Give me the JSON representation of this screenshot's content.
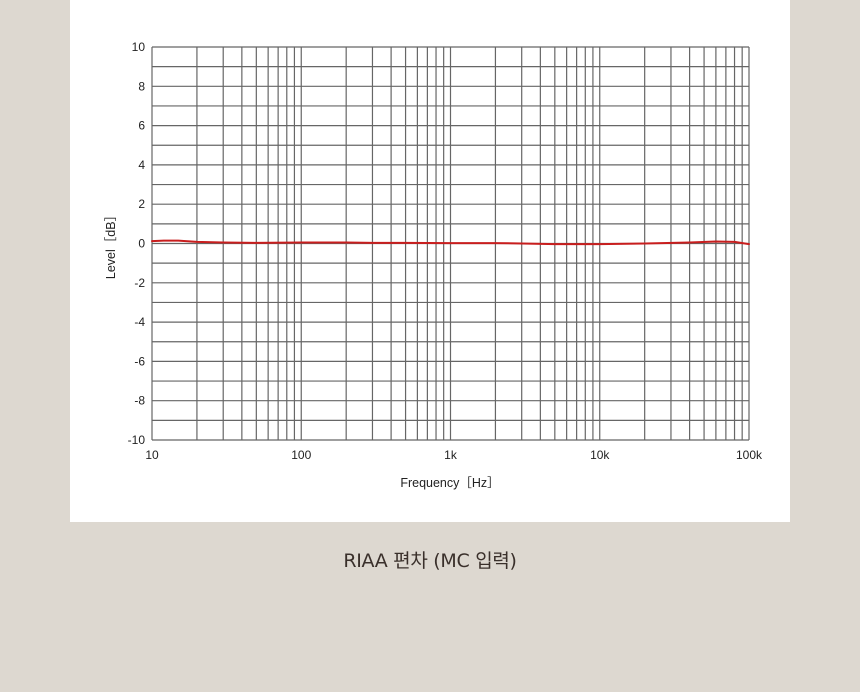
{
  "caption": "RIAA 편차 (MC 입력)",
  "chart_data": {
    "type": "line",
    "xlabel": "Frequency［Hz］",
    "ylabel": "Level［dB］",
    "xscale": "log",
    "xlim": [
      10,
      100000
    ],
    "ylim": [
      -10,
      10
    ],
    "x_ticks": [
      {
        "value": 10,
        "label": "10"
      },
      {
        "value": 100,
        "label": "100"
      },
      {
        "value": 1000,
        "label": "1k"
      },
      {
        "value": 10000,
        "label": "10k"
      },
      {
        "value": 100000,
        "label": "100k"
      }
    ],
    "y_ticks": [
      {
        "value": 10,
        "label": "10"
      },
      {
        "value": 8,
        "label": "8"
      },
      {
        "value": 6,
        "label": "6"
      },
      {
        "value": 4,
        "label": "4"
      },
      {
        "value": 2,
        "label": "2"
      },
      {
        "value": 0,
        "label": "0"
      },
      {
        "value": -2,
        "label": "-2"
      },
      {
        "value": -4,
        "label": "-4"
      },
      {
        "value": -6,
        "label": "-6"
      },
      {
        "value": -8,
        "label": "-8"
      },
      {
        "value": -10,
        "label": "-10"
      }
    ],
    "grid": true,
    "grid_color": "#666666",
    "series": [
      {
        "color": "#c81e1e",
        "x": [
          10,
          12,
          15,
          20,
          30,
          50,
          100,
          200,
          300,
          500,
          1000,
          2000,
          3000,
          5000,
          10000,
          20000,
          40000,
          60000,
          80000,
          100000
        ],
        "y": [
          0.12,
          0.15,
          0.15,
          0.08,
          0.05,
          0.03,
          0.05,
          0.05,
          0.03,
          0.03,
          0.02,
          0.02,
          0.0,
          -0.03,
          -0.03,
          0.0,
          0.05,
          0.1,
          0.08,
          -0.03
        ]
      }
    ]
  }
}
